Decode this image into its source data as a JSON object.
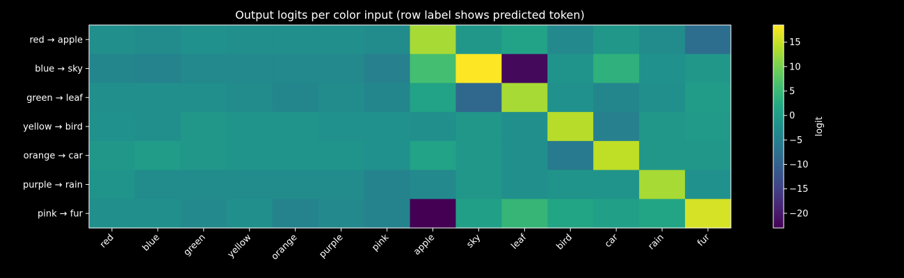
{
  "chart_data": {
    "type": "heatmap",
    "title": "Output logits per color input (row label shows predicted token)",
    "rows": [
      {
        "color": "red",
        "token": "apple"
      },
      {
        "color": "blue",
        "token": "sky"
      },
      {
        "color": "green",
        "token": "leaf"
      },
      {
        "color": "yellow",
        "token": "bird"
      },
      {
        "color": "orange",
        "token": "car"
      },
      {
        "color": "purple",
        "token": "rain"
      },
      {
        "color": "pink",
        "token": "fur"
      }
    ],
    "row_arrow": "→",
    "columns": [
      "red",
      "blue",
      "green",
      "yellow",
      "orange",
      "purple",
      "pink",
      "apple",
      "sky",
      "leaf",
      "bird",
      "car",
      "rain",
      "fur"
    ],
    "values": [
      [
        -2.5,
        -3,
        -2,
        -2.5,
        -2.5,
        -2.5,
        -3,
        13,
        -1,
        1,
        -3.5,
        -1,
        -3,
        -8
      ],
      [
        -4,
        -4.5,
        -3.5,
        -3.5,
        -3.5,
        -3.5,
        -5,
        6,
        18.5,
        -22,
        -1.5,
        3.5,
        -2,
        -1
      ],
      [
        -2.5,
        -2.5,
        -2.5,
        -3,
        -4,
        -3,
        -4,
        1,
        -9,
        13,
        -2,
        -4,
        -2.5,
        0
      ],
      [
        -2,
        -2.5,
        -1,
        -1.5,
        -1.5,
        -2,
        -2,
        -2.5,
        -1,
        -2.5,
        14,
        -5,
        -1,
        -0.5
      ],
      [
        -1,
        0,
        -1,
        -1.5,
        -1.5,
        -1.5,
        -2,
        1,
        -1,
        -2.5,
        -6,
        14.5,
        -1,
        -1
      ],
      [
        -1.5,
        -3,
        -3,
        -3,
        -3,
        -3,
        -4.5,
        -3.5,
        -1,
        -2.5,
        -1.5,
        -1.5,
        13,
        -2
      ],
      [
        -2.5,
        -2.5,
        -3.5,
        -2.5,
        -4.5,
        -3.5,
        -4.5,
        -23,
        0.5,
        4.5,
        1.5,
        0.5,
        1.5,
        16
      ]
    ],
    "colorbar": {
      "label": "logit",
      "ticks": [
        15,
        10,
        5,
        0,
        -5,
        -10,
        -15,
        -20
      ],
      "range": [
        -23,
        18.5
      ]
    },
    "colormap": "viridis",
    "grid": false
  }
}
